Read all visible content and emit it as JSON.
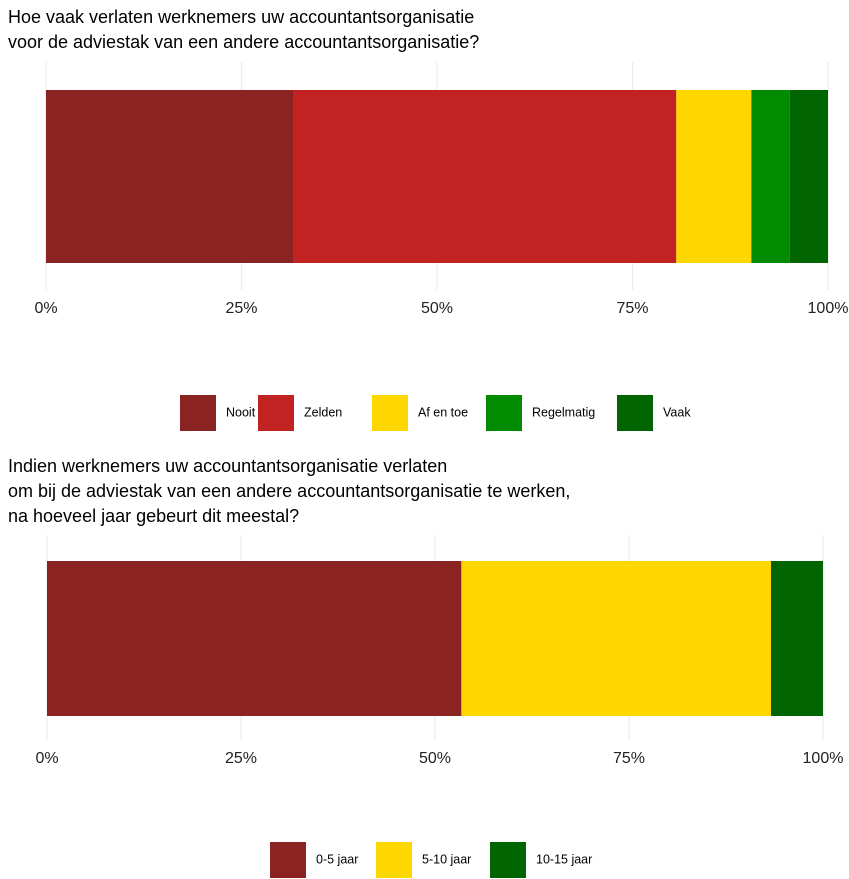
{
  "chart_data": [
    {
      "type": "stacked-bar",
      "title": [
        "Hoe vaak verlaten werknemers uw accountantsorganisatie",
        " voor de adviestak van een andere accountantsorganisatie?"
      ],
      "series": [
        {
          "name": "Nooit",
          "color": "#8b2323",
          "values": [
            31.7
          ]
        },
        {
          "name": "Zelden",
          "color": "#c12323",
          "values": [
            48.9
          ]
        },
        {
          "name": "Af en toe",
          "color": "#ffd700",
          "values": [
            9.6
          ]
        },
        {
          "name": "Regelmatig",
          "color": "#008b00",
          "values": [
            4.9
          ]
        },
        {
          "name": "Vaak",
          "color": "#006400",
          "values": [
            4.9
          ]
        }
      ],
      "xlim": [
        0,
        100
      ],
      "xticks": [
        {
          "value": 0,
          "label": "0%"
        },
        {
          "value": 25,
          "label": "25%"
        },
        {
          "value": 50,
          "label": "50%"
        },
        {
          "value": 75,
          "label": "75%"
        },
        {
          "value": 100,
          "label": "100%"
        }
      ],
      "grid": true,
      "legend": "bottom"
    },
    {
      "type": "stacked-bar",
      "title": [
        "Indien werknemers uw accountantsorganisatie verlaten",
        " om bij de adviestak van een andere accountantsorganisatie te werken,",
        " na hoeveel jaar gebeurt dit meestal?"
      ],
      "series": [
        {
          "name": "0-5 jaar",
          "color": "#8b2323",
          "values": [
            53.4
          ]
        },
        {
          "name": "5-10 jaar",
          "color": "#ffd700",
          "values": [
            39.9
          ]
        },
        {
          "name": "10-15 jaar",
          "color": "#006400",
          "values": [
            6.7
          ]
        }
      ],
      "xlim": [
        0,
        100
      ],
      "xticks": [
        {
          "value": 0,
          "label": "0%"
        },
        {
          "value": 25,
          "label": "25%"
        },
        {
          "value": 50,
          "label": "50%"
        },
        {
          "value": 75,
          "label": "75%"
        },
        {
          "value": 100,
          "label": "100%"
        }
      ],
      "grid": true,
      "legend": "bottom"
    }
  ]
}
